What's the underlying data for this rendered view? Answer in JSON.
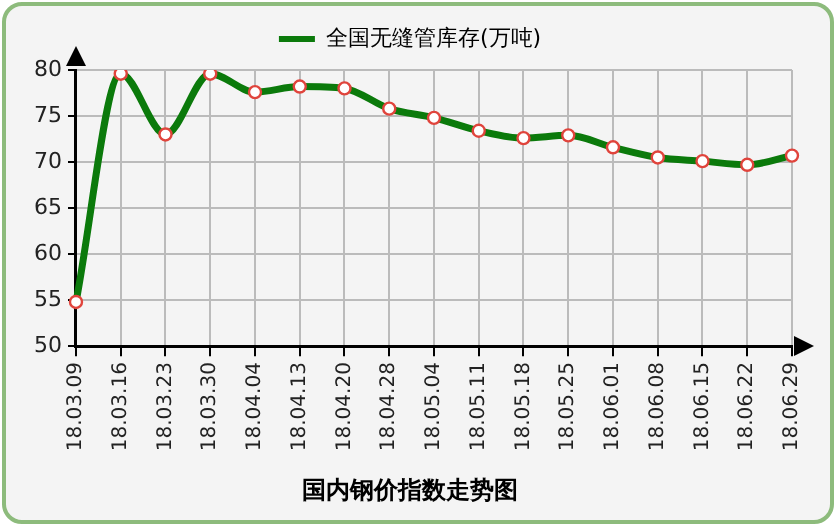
{
  "chart_data": {
    "type": "line",
    "title": "国内钢价指数走势图",
    "categories": [
      "18.03.09",
      "18.03.16",
      "18.03.23",
      "18.03.30",
      "18.04.04",
      "18.04.13",
      "18.04.20",
      "18.04.28",
      "18.05.04",
      "18.05.11",
      "18.05.18",
      "18.05.25",
      "18.06.01",
      "18.06.08",
      "18.06.15",
      "18.06.22",
      "18.06.29"
    ],
    "series": [
      {
        "name": "全国无缝管库存(万吨)",
        "color": "#0b7a0b",
        "values": [
          54.8,
          79.6,
          73.0,
          79.6,
          77.6,
          78.2,
          78.0,
          75.8,
          74.8,
          73.4,
          72.6,
          72.9,
          71.6,
          70.5,
          70.1,
          69.7,
          70.7
        ]
      }
    ],
    "ylim": [
      50,
      80
    ],
    "yticks": [
      50,
      55,
      60,
      65,
      70,
      75,
      80
    ],
    "grid": true,
    "legend": "top",
    "marker": "circle",
    "line_style": "solid"
  }
}
